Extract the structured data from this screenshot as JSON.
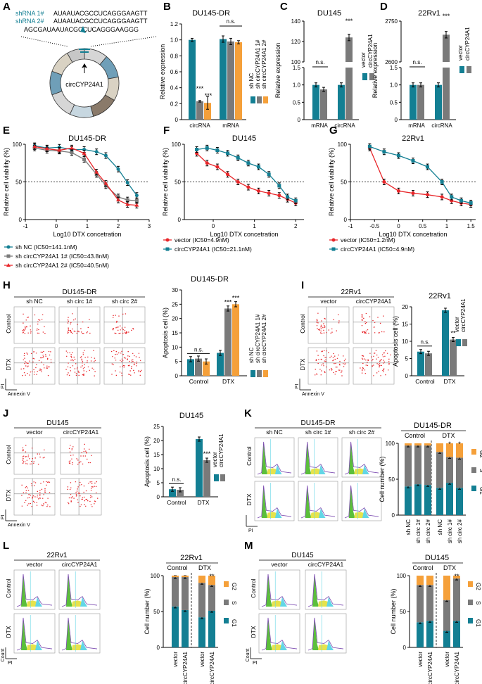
{
  "colors": {
    "teal": "#137f93",
    "gray": "#7a7a7a",
    "orange": "#f5a03a",
    "red": "#e8262a",
    "green": "#5bbf3b",
    "yellow": "#e6e34c",
    "cyan": "#62d6e6",
    "purple": "#7b4ab0"
  },
  "panel_letters": [
    "A",
    "B",
    "C",
    "D",
    "E",
    "F",
    "G",
    "H",
    "I",
    "J",
    "K",
    "L",
    "M"
  ],
  "panelA": {
    "shrna1_label": "shRNA 1#",
    "shrna1_seq": "AUAAUACGCCUCAGGGAAGTT",
    "shrna2_label": "shRNA 2#",
    "shrna2_seq": "AUAAUACGCCUCAGGGAAGTT",
    "full_seq": "AGCGAUAAUACGCCUCAGGGAAGGG",
    "circ_label": "circCYP24A1"
  },
  "chart_data": [
    {
      "id": "B",
      "type": "bar",
      "title": "DU145-DR",
      "ylabel": "Relative expression",
      "ylim": [
        0,
        1.2
      ],
      "yticks": [
        0,
        0.2,
        0.4,
        0.6,
        0.8,
        1.0,
        1.2
      ],
      "categories": [
        "circRNA",
        "mRNA"
      ],
      "series": [
        {
          "name": "sh NC",
          "values": [
            1.0,
            1.01
          ]
        },
        {
          "name": "sh circCYP24A1 1#",
          "values": [
            0.23,
            0.98
          ]
        },
        {
          "name": "sh circCYP24A1 2#",
          "values": [
            0.21,
            0.97
          ]
        }
      ],
      "annotations": [
        "***",
        "***",
        "n.s."
      ]
    },
    {
      "id": "C",
      "type": "bar",
      "title": "DU145",
      "ylabel": "Relative expression",
      "ylim_lower": [
        0,
        1.5
      ],
      "ylim_upper": [
        100,
        140
      ],
      "yticks": [
        0,
        0.5,
        1.0,
        1.5,
        100,
        120,
        140
      ],
      "categories": [
        "mRNA",
        "circRNA"
      ],
      "series": [
        {
          "name": "vector",
          "values": [
            1.0,
            1.0
          ]
        },
        {
          "name": "circCYP24A1",
          "values": [
            0.87,
            124
          ]
        }
      ],
      "annotations": [
        "n.s.",
        "***"
      ]
    },
    {
      "id": "D",
      "type": "bar",
      "title": "22Rv1",
      "ylabel": "Relative expression",
      "ylim_lower": [
        0,
        1.5
      ],
      "ylim_upper": [
        2600,
        2750
      ],
      "yticks": [
        0,
        0.5,
        1.0,
        1.5,
        2600,
        2750
      ],
      "categories": [
        "mRNA",
        "circRNA"
      ],
      "series": [
        {
          "name": "vector",
          "values": [
            1.0,
            1.0
          ]
        },
        {
          "name": "circCYP24A1",
          "values": [
            1.0,
            2700
          ]
        }
      ],
      "annotations": [
        "n.s.",
        "***"
      ]
    },
    {
      "id": "E",
      "type": "line",
      "title": "DU145-DR",
      "xlabel": "Log10 DTX concetration",
      "ylabel": "Relative cell viability (%)",
      "xlim": [
        -1,
        3
      ],
      "xticks": [
        -1,
        0,
        1,
        2,
        3
      ],
      "ylim": [
        0,
        100
      ],
      "yticks": [
        0,
        50,
        100
      ],
      "series": [
        {
          "name": "sh NC (IC50=141.1nM)",
          "x": [
            -0.7,
            -0.3,
            0.1,
            0.5,
            0.9,
            1.3,
            1.6,
            2.0,
            2.3,
            2.6
          ],
          "y": [
            98,
            95,
            96,
            93,
            93,
            90,
            85,
            67,
            49,
            32
          ]
        },
        {
          "name": "sh circCYP24A1 1# (IC50=43.8nM)",
          "x": [
            -0.7,
            -0.3,
            0.1,
            0.5,
            0.9,
            1.3,
            1.6,
            2.0,
            2.3,
            2.6
          ],
          "y": [
            95,
            92,
            91,
            89,
            80,
            60,
            45,
            30,
            26,
            25
          ]
        },
        {
          "name": "sh circCYP24A1 2# (IC50=40.5nM)",
          "x": [
            -0.7,
            -0.3,
            0.1,
            0.5,
            0.9,
            1.3,
            1.6,
            2.0,
            2.3,
            2.6
          ],
          "y": [
            97,
            94,
            92,
            95,
            88,
            63,
            48,
            26,
            20,
            19
          ]
        }
      ]
    },
    {
      "id": "F",
      "type": "line",
      "title": "DU145",
      "xlabel": "Log10 DTX concetration",
      "ylabel": "Relative cell viability (%)",
      "xlim": [
        -0.7,
        2.2
      ],
      "xticks": [
        0,
        1,
        2
      ],
      "ylim": [
        0,
        100
      ],
      "yticks": [
        0,
        50,
        100
      ],
      "series": [
        {
          "name": "vector (IC50=4.9nM)",
          "x": [
            -0.4,
            -0.15,
            0.1,
            0.35,
            0.6,
            0.85,
            1.1,
            1.35,
            1.6,
            1.8,
            2.0
          ],
          "y": [
            88,
            75,
            70,
            60,
            50,
            43,
            38,
            35,
            32,
            27,
            22
          ]
        },
        {
          "name": "circCYP24A1 (IC50=21.1nM)",
          "x": [
            -0.4,
            -0.15,
            0.1,
            0.35,
            0.6,
            0.85,
            1.1,
            1.35,
            1.6,
            1.8,
            2.0
          ],
          "y": [
            93,
            95,
            92,
            88,
            82,
            75,
            70,
            60,
            45,
            30,
            25
          ]
        }
      ]
    },
    {
      "id": "G",
      "type": "line",
      "title": "22Rv1",
      "xlabel": "Log10 DTX concetration",
      "ylabel": "Relative cell viability (%)",
      "xlim": [
        -1.0,
        1.6
      ],
      "xticks": [
        -1.0,
        -0.5,
        0,
        0.5,
        1.0,
        1.5
      ],
      "ylim": [
        0,
        100
      ],
      "yticks": [
        0,
        50,
        100
      ],
      "series": [
        {
          "name": "vector (IC50=1.2nM)",
          "x": [
            -0.6,
            -0.3,
            0,
            0.3,
            0.6,
            0.9,
            1.1,
            1.3,
            1.5
          ],
          "y": [
            95,
            50,
            38,
            35,
            33,
            30,
            25,
            22,
            20
          ]
        },
        {
          "name": "circCYP24A1 (IC50=4.9nM)",
          "x": [
            -0.6,
            -0.3,
            0,
            0.3,
            0.6,
            0.9,
            1.1,
            1.3,
            1.5
          ],
          "y": [
            97,
            90,
            85,
            78,
            70,
            50,
            30,
            25,
            22
          ]
        }
      ]
    },
    {
      "id": "H",
      "type": "bar",
      "title": "DU145-DR",
      "ylabel": "Apoptosis cell (%)",
      "ylim": [
        0,
        30
      ],
      "yticks": [
        0,
        5,
        10,
        15,
        20,
        25,
        30
      ],
      "categories": [
        "Control",
        "DTX"
      ],
      "series": [
        {
          "name": "sh NC",
          "values": [
            5.8,
            8.0
          ]
        },
        {
          "name": "sh circCYP24A1 1#",
          "values": [
            6.0,
            23.5
          ]
        },
        {
          "name": "sh circCYP24A1 2#",
          "values": [
            5.0,
            25.0
          ]
        }
      ],
      "annotations": [
        "n.s.",
        "***",
        "***"
      ]
    },
    {
      "id": "I",
      "type": "bar",
      "title": "22Rv1",
      "ylabel": "Apoptosis cell (%)",
      "ylim": [
        0,
        20
      ],
      "yticks": [
        0,
        5,
        10,
        15,
        20
      ],
      "categories": [
        "Control",
        "DTX"
      ],
      "series": [
        {
          "name": "vector",
          "values": [
            7.0,
            19.0
          ]
        },
        {
          "name": "circCYP24A1",
          "values": [
            6.5,
            10.5
          ]
        }
      ],
      "annotations": [
        "n.s.",
        "**"
      ]
    },
    {
      "id": "J",
      "type": "bar",
      "title": "DU145",
      "ylabel": "Apoptosis cell (%)",
      "ylim": [
        0,
        25
      ],
      "yticks": [
        0,
        5,
        10,
        15,
        20,
        25
      ],
      "categories": [
        "Control",
        "DTX"
      ],
      "series": [
        {
          "name": "vector",
          "values": [
            2.7,
            20.5
          ]
        },
        {
          "name": "circCYP24A1",
          "values": [
            2.5,
            13.0
          ]
        }
      ],
      "annotations": [
        "n.s.",
        "***"
      ]
    },
    {
      "id": "K",
      "type": "bar",
      "stacked": true,
      "title": "DU145-DR",
      "ylabel": "Cell number (%)",
      "ylim": [
        0,
        100
      ],
      "yticks": [
        0,
        50,
        100
      ],
      "groups": [
        "Control",
        "DTX"
      ],
      "categories": [
        "sh NC",
        "sh circ 1#",
        "sh circ 2#",
        "sh NC",
        "sh circ 1#",
        "sh circ 2#"
      ],
      "series": [
        {
          "name": "G1",
          "values": [
            40,
            43,
            42,
            38,
            45,
            38
          ]
        },
        {
          "name": "S",
          "values": [
            57,
            54,
            55,
            50,
            36,
            42
          ]
        },
        {
          "name": "G2",
          "values": [
            3,
            3,
            3,
            12,
            19,
            20
          ]
        }
      ],
      "annotations": [
        "*",
        "*"
      ]
    },
    {
      "id": "L",
      "type": "bar",
      "stacked": true,
      "title": "22Rv1",
      "ylabel": "Cell number (%)",
      "ylim": [
        0,
        100
      ],
      "yticks": [
        0,
        50,
        100
      ],
      "groups": [
        "Control",
        "DTX"
      ],
      "categories": [
        "vector",
        "circCYP24A1",
        "vector",
        "circCYP24A1"
      ],
      "series": [
        {
          "name": "G1",
          "values": [
            57,
            52,
            42,
            51
          ]
        },
        {
          "name": "S",
          "values": [
            41,
            46,
            48,
            36
          ]
        },
        {
          "name": "G2",
          "values": [
            2,
            2,
            10,
            13
          ]
        }
      ],
      "annotations": [
        "**"
      ]
    },
    {
      "id": "M",
      "type": "bar",
      "stacked": true,
      "title": "DU145",
      "ylabel": "Cell number (%)",
      "ylim": [
        0,
        100
      ],
      "yticks": [
        0,
        50,
        100
      ],
      "groups": [
        "Control",
        "DTX"
      ],
      "categories": [
        "vector",
        "circCYP24A1",
        "vector",
        "circCYP24A1"
      ],
      "series": [
        {
          "name": "G1",
          "values": [
            35,
            37,
            23,
            37
          ]
        },
        {
          "name": "S",
          "values": [
            52,
            50,
            43,
            59
          ]
        },
        {
          "name": "G2",
          "values": [
            13,
            13,
            34,
            4
          ]
        }
      ],
      "annotations": [
        "**"
      ]
    }
  ],
  "flow": {
    "H": {
      "title": "DU145-DR",
      "cols": [
        "sh NC",
        "sh circ 1#",
        "sh circ 2#"
      ],
      "rows": [
        "Control",
        "DTX"
      ],
      "yaxis": "PI",
      "xaxis": "Annexin V"
    },
    "I": {
      "title": "22Rv1",
      "cols": [
        "vector",
        "circCYP24A1"
      ],
      "rows": [
        "Control",
        "DTX"
      ],
      "yaxis": "PI",
      "xaxis": "Annexin V"
    },
    "J": {
      "title": "DU145",
      "cols": [
        "vector",
        "circCYP24A1"
      ],
      "rows": [
        "Control",
        "DTX"
      ],
      "yaxis": "PI",
      "xaxis": "Annexin V"
    },
    "K": {
      "title": "DU145-DR",
      "cols": [
        "sh NC",
        "sh circ 1#",
        "sh circ 2#"
      ],
      "rows": [
        "Control",
        "DTX"
      ],
      "yaxis": "",
      "xaxis": "PI"
    },
    "L": {
      "title": "22Rv1",
      "cols": [
        "vector",
        "circCYP24A1"
      ],
      "rows": [
        "Control",
        "DTX"
      ],
      "yaxis": "Count",
      "xaxis": "PI"
    },
    "M": {
      "title": "DU145",
      "cols": [
        "vector",
        "circCYP24A1"
      ],
      "rows": [
        "Control",
        "DTX"
      ],
      "yaxis": "Count",
      "xaxis": "PI"
    }
  },
  "legends": {
    "B": [
      "sh NC",
      "sh circCYP24A1 1#",
      "sh circCYP24A1 2#"
    ],
    "CD": [
      "vector",
      "circCYP24A1"
    ],
    "E": [
      "sh NC (IC50=141.1nM)",
      "sh circCYP24A1 1# (IC50=43.8nM)",
      "sh circCYP24A1 2# (IC50=40.5nM)"
    ],
    "F": [
      "vector (IC50=4.9nM)",
      "circCYP24A1 (IC50=21.1nM)"
    ],
    "G": [
      "vector (IC50=1.2nM)",
      "circCYP24A1 (IC50=4.9nM)"
    ],
    "cycle": [
      "G2",
      "S",
      "G1"
    ],
    "K_ctrl": "Control",
    "K_dtx": "DTX"
  }
}
